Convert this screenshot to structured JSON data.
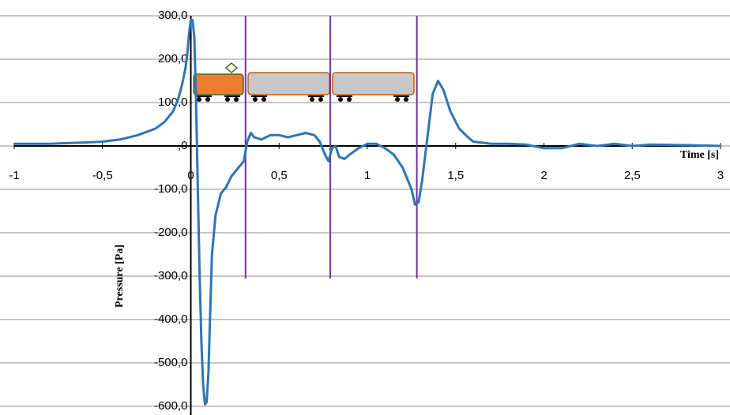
{
  "chart_data": {
    "type": "line",
    "x_label": "Time [s]",
    "y_label": "Pressure [Pa]",
    "x": [
      -1,
      -0.8,
      -0.6,
      -0.5,
      -0.4,
      -0.3,
      -0.2,
      -0.15,
      -0.1,
      -0.07,
      -0.05,
      -0.03,
      -0.02,
      -0.01,
      0,
      0.01,
      0.02,
      0.03,
      0.04,
      0.05,
      0.06,
      0.07,
      0.08,
      0.09,
      0.1,
      0.11,
      0.12,
      0.14,
      0.17,
      0.2,
      0.23,
      0.27,
      0.3,
      0.32,
      0.34,
      0.36,
      0.4,
      0.45,
      0.5,
      0.55,
      0.6,
      0.65,
      0.7,
      0.73,
      0.76,
      0.78,
      0.8,
      0.82,
      0.84,
      0.87,
      0.9,
      0.95,
      1.0,
      1.05,
      1.1,
      1.15,
      1.2,
      1.25,
      1.27,
      1.29,
      1.31,
      1.34,
      1.37,
      1.4,
      1.43,
      1.47,
      1.52,
      1.57,
      1.6,
      1.7,
      1.8,
      1.9,
      2.0,
      2.1,
      2.2,
      2.3,
      2.4,
      2.5,
      2.6,
      2.8,
      3.0
    ],
    "series": [
      {
        "color": "#2e75b6",
        "values": [
          5,
          5,
          8,
          10,
          15,
          25,
          40,
          55,
          80,
          110,
          140,
          180,
          210,
          260,
          290,
          290,
          250,
          100,
          -100,
          -300,
          -450,
          -550,
          -595,
          -590,
          -520,
          -380,
          -250,
          -160,
          -110,
          -95,
          -70,
          -50,
          -35,
          10,
          30,
          20,
          15,
          25,
          25,
          20,
          25,
          30,
          25,
          10,
          -20,
          -35,
          -5,
          0,
          -25,
          -30,
          -20,
          -5,
          5,
          5,
          -5,
          -20,
          -50,
          -100,
          -135,
          -130,
          -80,
          20,
          120,
          150,
          130,
          80,
          40,
          20,
          10,
          5,
          5,
          3,
          -5,
          -5,
          5,
          0,
          5,
          0,
          3,
          2,
          0
        ]
      }
    ],
    "vlines": [
      0.31,
      0.79,
      1.28
    ],
    "vline_color": "#7030a0",
    "xlim": [
      -1,
      3
    ],
    "xticks": [
      -1,
      {
        "value": -0.5,
        "label": "-0,5"
      },
      0,
      {
        "value": 0.5,
        "label": "0,5"
      },
      1,
      {
        "value": 1.5,
        "label": "1,5"
      },
      2,
      {
        "value": 2.5,
        "label": "2,5"
      },
      3
    ],
    "ylim": [
      -600,
      300
    ],
    "yticks": [
      {
        "value": 300,
        "label": "300,0"
      },
      {
        "value": 200,
        "label": "200,0"
      },
      {
        "value": 100,
        "label": "100,0"
      },
      {
        "value": 0,
        "label": ",0"
      },
      {
        "value": -100,
        "label": "-100,0"
      },
      {
        "value": -200,
        "label": "-200,0"
      },
      {
        "value": -300,
        "label": "-300,0"
      },
      {
        "value": -400,
        "label": "-400,0"
      },
      {
        "value": -500,
        "label": "-500,0"
      },
      {
        "value": -600,
        "label": "-600,0"
      }
    ],
    "grid": true
  }
}
